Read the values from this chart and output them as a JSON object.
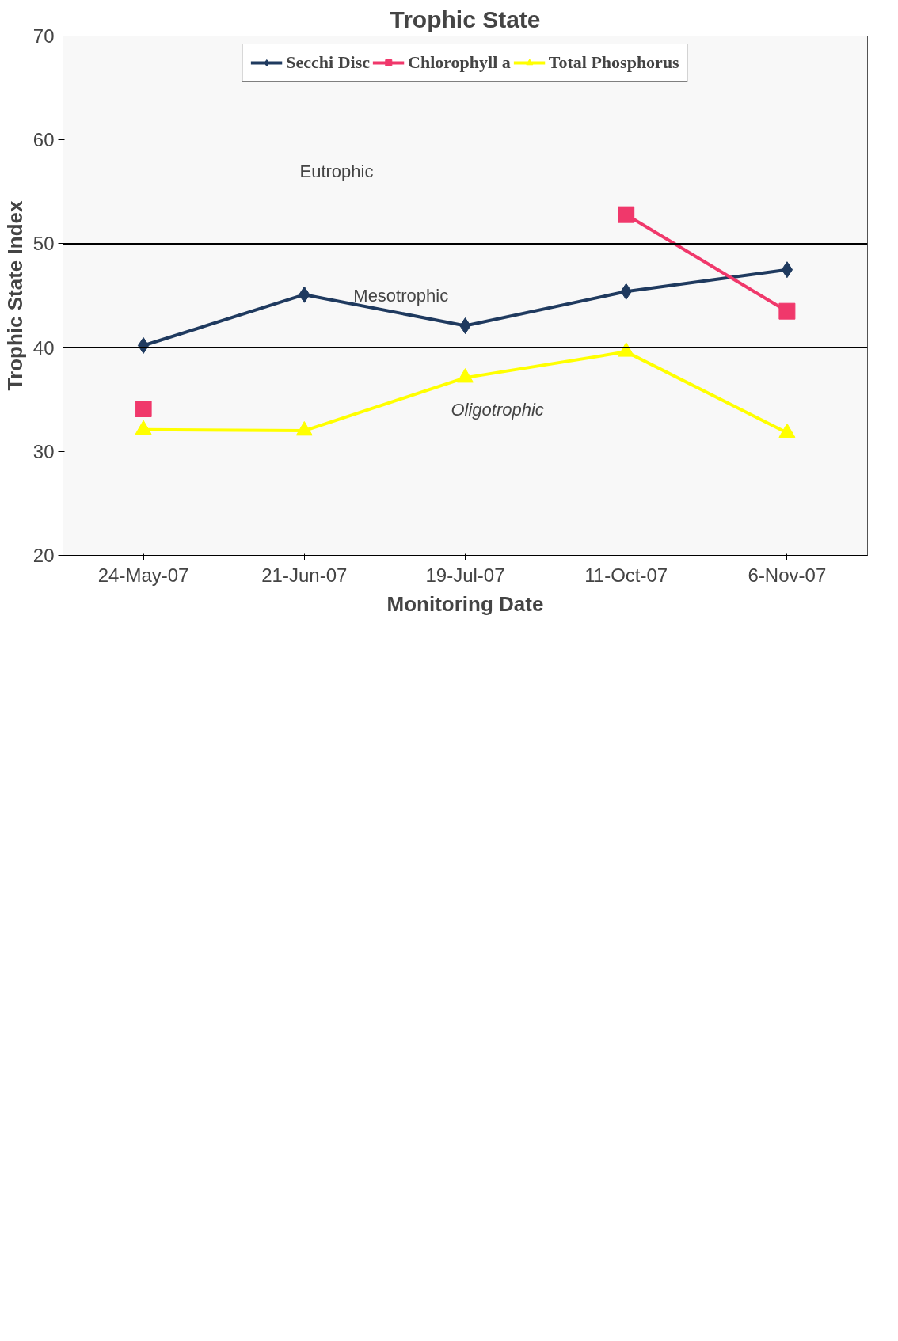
{
  "chart_data": {
    "type": "line",
    "title": "Trophic State",
    "xlabel": "Monitoring Date",
    "ylabel": "Trophic State Index",
    "categories": [
      "24-May-07",
      "21-Jun-07",
      "19-Jul-07",
      "11-Oct-07",
      "6-Nov-07"
    ],
    "series": [
      {
        "name": "Secchi Disc",
        "color": "#1f3a5f",
        "marker": "diamond",
        "values": [
          40.2,
          45.1,
          42.1,
          45.4,
          47.5
        ]
      },
      {
        "name": "Chlorophyll a",
        "color": "#f0386b",
        "marker": "square",
        "values": [
          34.1,
          null,
          null,
          52.8,
          43.5
        ]
      },
      {
        "name": "Total Phosphorus",
        "color": "#ffff00",
        "marker": "triangle",
        "values": [
          32.1,
          32,
          37.1,
          39.6,
          31.8
        ]
      }
    ],
    "ylim": [
      20,
      70
    ],
    "yticks": [
      20,
      30,
      40,
      50,
      60,
      70
    ],
    "ref_lines": [
      {
        "axis": "y",
        "value": 50,
        "color": "#000000"
      },
      {
        "axis": "y",
        "value": 40,
        "color": "#000000"
      }
    ],
    "bands": [
      {
        "axis": "y",
        "from": 50,
        "to": 70,
        "label": "Eutrophic",
        "color": "#f8f8f8"
      },
      {
        "axis": "y",
        "from": 40,
        "to": 50,
        "label": "Mesotrophic",
        "color": "#f8f8f8"
      },
      {
        "axis": "y",
        "from": 20,
        "to": 40,
        "label": "Oligotrophic",
        "color": "#f8f8f8"
      }
    ],
    "legend": "top",
    "grid": false
  }
}
